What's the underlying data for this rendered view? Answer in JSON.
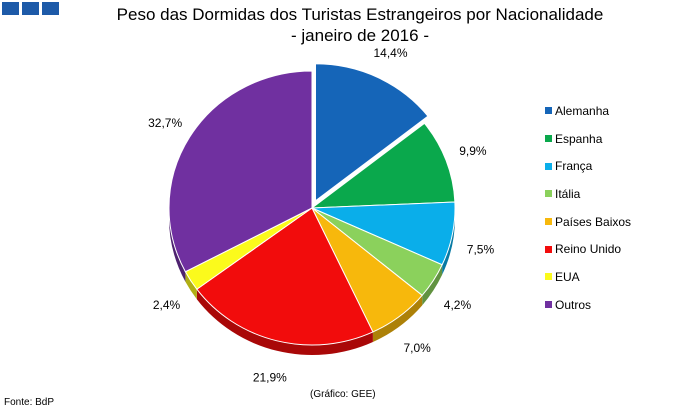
{
  "header": {
    "logo_icon": "three-blue-squares-icon"
  },
  "chart_data": {
    "type": "pie",
    "title": "Peso das Dormidas dos Turistas Estrangeiros por Nacionalidade",
    "subtitle": "- janeiro de 2016 -",
    "categories": [
      "Alemanha",
      "Espanha",
      "França",
      "Itália",
      "Países Baixos",
      "Reino Unido",
      "EUA",
      "Outros"
    ],
    "values": [
      14.4,
      9.9,
      7.5,
      4.2,
      7.0,
      21.9,
      2.4,
      32.7
    ],
    "labels": [
      "14,4%",
      "9,9%",
      "7,5%",
      "4,2%",
      "7,0%",
      "21,9%",
      "2,4%",
      "32,7%"
    ],
    "colors": [
      "#1565b8",
      "#0aa84c",
      "#0aaeea",
      "#8bd15c",
      "#f7b80c",
      "#f20c0c",
      "#fbfa1c",
      "#7030a0"
    ],
    "legend_position": "right",
    "exploded_slices": [
      "Alemanha"
    ]
  },
  "footer": {
    "source": "Fonte: BdP",
    "credit": "(Gráfico: GEE)"
  }
}
